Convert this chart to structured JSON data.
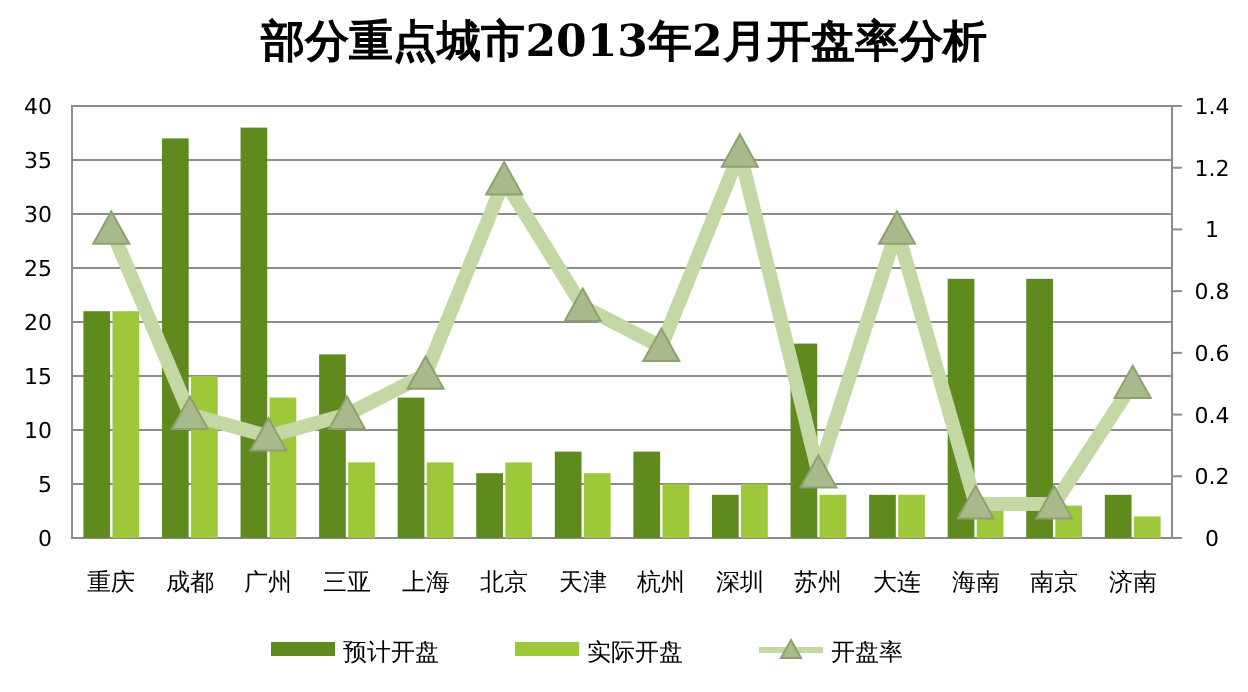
{
  "chart_data": {
    "type": "bar",
    "title": "部分重点城市2013年2月开盘率分析",
    "categories": [
      "重庆",
      "成都",
      "广州",
      "三亚",
      "上海",
      "北京",
      "天津",
      "杭州",
      "深圳",
      "苏州",
      "大连",
      "海南",
      "南京",
      "济南"
    ],
    "series": [
      {
        "name": "预计开盘",
        "color": "#5f8a1e",
        "values": [
          21,
          37,
          38,
          17,
          13,
          6,
          8,
          8,
          4,
          18,
          4,
          24,
          24,
          4
        ]
      },
      {
        "name": "实际开盘",
        "color": "#9cc83a",
        "values": [
          21,
          15,
          13,
          7,
          7,
          7,
          6,
          5,
          5,
          4,
          4,
          3,
          3,
          2
        ]
      },
      {
        "name": "开盘率",
        "type": "line",
        "axis": "y2",
        "color": "#c4d8a6",
        "marker": "triangle",
        "values": [
          1.0,
          0.4,
          0.33,
          0.4,
          0.53,
          1.16,
          0.75,
          0.62,
          1.25,
          0.21,
          1.0,
          0.11,
          0.11,
          0.5
        ]
      }
    ],
    "ylim": [
      0,
      40
    ],
    "yticks": [
      0,
      5,
      10,
      15,
      20,
      25,
      30,
      35,
      40
    ],
    "y2lim": [
      0,
      1.4
    ],
    "y2ticks": [
      0,
      0.2,
      0.4,
      0.6,
      0.8,
      1,
      1.2,
      1.4
    ],
    "grid": "y",
    "legend": "bottom"
  }
}
